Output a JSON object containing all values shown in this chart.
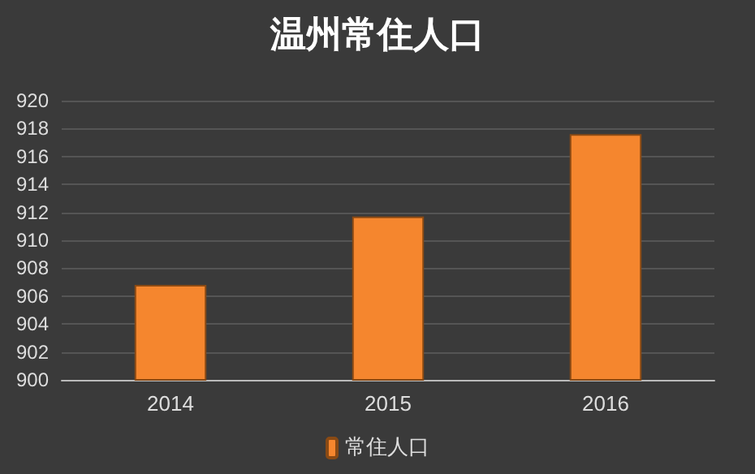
{
  "chart_data": {
    "type": "bar",
    "title": "温州常住人口",
    "categories": [
      "2014",
      "2015",
      "2016"
    ],
    "series": [
      {
        "name": "常住人口",
        "color": "#f5862e",
        "values": [
          906.8,
          911.7,
          917.6
        ]
      }
    ],
    "ylim": [
      900,
      920
    ],
    "yticks": [
      900,
      902,
      904,
      906,
      908,
      910,
      912,
      914,
      916,
      918,
      920
    ],
    "grid": "y",
    "legend": "bottom"
  }
}
